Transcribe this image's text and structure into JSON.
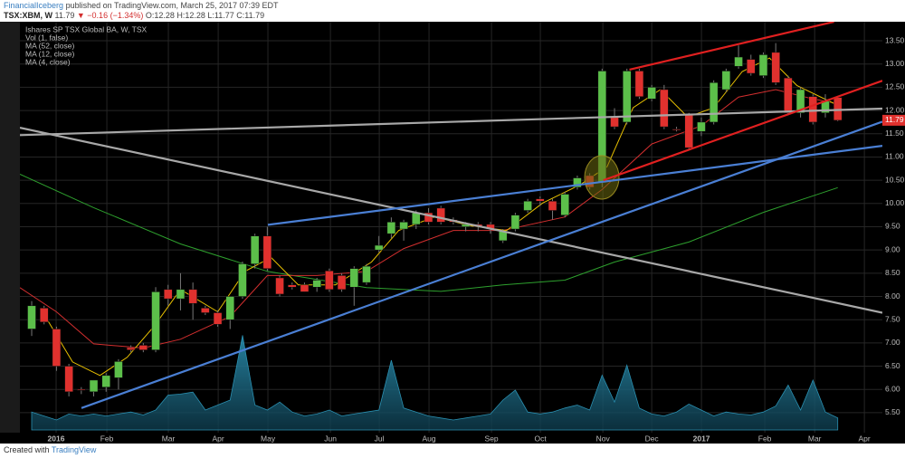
{
  "header": {
    "author": "FinancialIceberg",
    "published": "published on TradingView.com, March 25, 2017 07:39 EDT",
    "symbol": "TSX:XBM, W",
    "last": "11.79",
    "change": "▼ −0.16 (−1.34%)",
    "ohlc": "O:12.28 H:12.28 L:11.77 C:11.79"
  },
  "footer": {
    "text": "Created with",
    "brand": "TradingView"
  },
  "chart_data": {
    "type": "candlestick",
    "title": "Ishares SP TSX Global BA, W, TSX",
    "up_color": "#5cbf4a",
    "down_color": "#e0312e",
    "grid": true,
    "last_price": {
      "value": 11.79,
      "label": "11.79"
    },
    "xlim": [
      -0.95,
      68.6
    ],
    "xticks": [
      {
        "value": 1.97,
        "label": "2016"
      },
      {
        "value": 6.06,
        "label": "Feb"
      },
      {
        "value": 11.02,
        "label": "Mar"
      },
      {
        "value": 15.04,
        "label": "Apr"
      },
      {
        "value": 19.05,
        "label": "May"
      },
      {
        "value": 24.09,
        "label": "Jun"
      },
      {
        "value": 28.03,
        "label": "Jul"
      },
      {
        "value": 32.04,
        "label": "Aug"
      },
      {
        "value": 37.08,
        "label": "Sep"
      },
      {
        "value": 41.02,
        "label": "Oct"
      },
      {
        "value": 46.06,
        "label": "Nov"
      },
      {
        "value": 50.0,
        "label": "Dec"
      },
      {
        "value": 54.01,
        "label": "2017"
      },
      {
        "value": 59.12,
        "label": "Feb"
      },
      {
        "value": 63.14,
        "label": "Mar"
      },
      {
        "value": 67.15,
        "label": "Apr"
      }
    ],
    "ylim": [
      5.07,
      13.91
    ],
    "yticks": [
      {
        "value": 5.5,
        "label": "5.50"
      },
      {
        "value": 6,
        "label": "6.00"
      },
      {
        "value": 6.5,
        "label": "6.50"
      },
      {
        "value": 7,
        "label": "7.00"
      },
      {
        "value": 7.5,
        "label": "7.50"
      },
      {
        "value": 8,
        "label": "8.00"
      },
      {
        "value": 8.5,
        "label": "8.50"
      },
      {
        "value": 9,
        "label": "9.00"
      },
      {
        "value": 9.5,
        "label": "9.50"
      },
      {
        "value": 10,
        "label": "10.00"
      },
      {
        "value": 10.5,
        "label": "10.50"
      },
      {
        "value": 11,
        "label": "11.00"
      },
      {
        "value": 11.5,
        "label": "11.50"
      },
      {
        "value": 12,
        "label": "12.00"
      },
      {
        "value": 12.5,
        "label": "12.50"
      },
      {
        "value": 13,
        "label": "13.00"
      },
      {
        "value": 13.5,
        "label": "13.50"
      }
    ],
    "x": [
      0,
      1,
      2,
      3,
      4,
      5,
      6,
      7,
      8,
      9,
      10,
      11,
      12,
      13,
      14,
      15,
      16,
      17,
      18,
      19,
      20,
      21,
      22,
      23,
      24,
      25,
      26,
      27,
      28,
      29,
      30,
      31,
      32,
      33,
      34,
      35,
      36,
      37,
      38,
      39,
      40,
      41,
      42,
      43,
      44,
      45,
      46,
      47,
      48,
      49,
      50,
      51,
      52,
      53,
      54,
      55,
      56,
      57,
      58,
      59,
      60,
      61,
      62,
      63,
      64,
      65
    ],
    "open": [
      7.3,
      7.75,
      7.3,
      6.5,
      6.0,
      5.95,
      6.05,
      6.25,
      6.9,
      6.95,
      6.85,
      8.15,
      7.95,
      8.15,
      7.75,
      7.65,
      7.5,
      8.0,
      8.7,
      9.3,
      8.4,
      8.25,
      8.25,
      8.2,
      8.55,
      8.45,
      8.2,
      8.3,
      9.0,
      9.35,
      9.45,
      9.55,
      9.8,
      9.9,
      9.65,
      9.5,
      9.55,
      9.55,
      9.2,
      9.45,
      9.85,
      10.1,
      10.05,
      9.75,
      10.35,
      10.6,
      10.45,
      11.85,
      11.75,
      12.85,
      12.25,
      12.45,
      11.6,
      11.9,
      11.55,
      11.75,
      12.45,
      12.95,
      13.1,
      12.75,
      13.25,
      12.7,
      11.95,
      12.3,
      11.95,
      12.28
    ],
    "high": [
      7.9,
      7.8,
      7.35,
      6.55,
      6.05,
      6.2,
      6.35,
      6.65,
      6.95,
      7.0,
      8.2,
      8.25,
      8.5,
      8.3,
      7.8,
      7.7,
      8.0,
      8.75,
      9.35,
      9.5,
      8.45,
      8.3,
      8.3,
      8.4,
      8.6,
      8.5,
      8.65,
      8.7,
      9.3,
      9.7,
      9.65,
      9.85,
      9.9,
      9.95,
      9.7,
      9.6,
      9.6,
      9.6,
      9.45,
      9.8,
      10.1,
      10.15,
      10.1,
      10.25,
      10.6,
      10.65,
      12.9,
      12.05,
      12.9,
      12.9,
      12.55,
      12.55,
      11.65,
      11.95,
      11.85,
      12.65,
      12.9,
      13.4,
      13.2,
      13.25,
      13.45,
      12.75,
      12.5,
      12.35,
      12.35,
      12.28
    ],
    "low": [
      7.15,
      7.4,
      6.4,
      5.85,
      5.9,
      5.85,
      5.95,
      6.0,
      6.8,
      6.8,
      6.8,
      7.8,
      7.7,
      7.5,
      7.6,
      7.35,
      7.3,
      7.95,
      8.6,
      8.55,
      8.0,
      8.15,
      8.1,
      8.1,
      8.1,
      8.1,
      7.8,
      8.25,
      8.95,
      9.25,
      9.2,
      9.45,
      9.55,
      9.55,
      9.55,
      9.4,
      9.4,
      9.35,
      9.15,
      9.4,
      9.8,
      9.95,
      9.65,
      9.7,
      10.3,
      10.3,
      10.35,
      11.6,
      11.7,
      12.25,
      12.2,
      11.6,
      11.55,
      11.15,
      11.45,
      11.7,
      12.4,
      12.9,
      12.75,
      12.7,
      12.55,
      11.9,
      11.85,
      11.7,
      11.85,
      11.77
    ],
    "close": [
      7.8,
      7.45,
      6.5,
      5.95,
      5.98,
      6.2,
      6.3,
      6.6,
      6.85,
      6.85,
      8.1,
      7.95,
      8.15,
      7.85,
      7.65,
      7.4,
      8.0,
      8.7,
      9.3,
      8.6,
      8.05,
      8.2,
      8.1,
      8.35,
      8.15,
      8.15,
      8.6,
      8.65,
      9.1,
      9.6,
      9.6,
      9.8,
      9.6,
      9.6,
      9.6,
      9.55,
      9.5,
      9.45,
      9.4,
      9.75,
      10.05,
      10.05,
      9.85,
      10.2,
      10.55,
      10.35,
      12.85,
      11.65,
      12.85,
      12.3,
      12.5,
      11.65,
      11.58,
      11.2,
      11.75,
      12.6,
      12.85,
      13.15,
      12.8,
      13.2,
      12.6,
      11.95,
      12.45,
      11.75,
      12.2,
      11.79
    ],
    "volume": {
      "name": "Vol (1, false)",
      "color": "#2a8fb0",
      "values": [
        18,
        14,
        10,
        16,
        14,
        16,
        14,
        16,
        18,
        15,
        20,
        35,
        36,
        38,
        20,
        25,
        30,
        95,
        25,
        20,
        28,
        18,
        14,
        16,
        20,
        14,
        16,
        18,
        20,
        70,
        22,
        18,
        14,
        12,
        10,
        12,
        14,
        16,
        30,
        40,
        18,
        16,
        18,
        22,
        25,
        20,
        55,
        28,
        65,
        22,
        16,
        14,
        18,
        26,
        20,
        14,
        18,
        16,
        15,
        18,
        24,
        45,
        20,
        50,
        18,
        12
      ]
    },
    "series": [
      {
        "name": "MA (52, close)",
        "color": "#2ea02e",
        "x": [
          -0.95,
          5,
          12,
          19,
          27,
          33,
          38,
          43,
          47,
          53,
          59,
          65
        ],
        "values": [
          10.63,
          9.91,
          9.13,
          8.54,
          8.19,
          8.11,
          8.25,
          8.35,
          8.74,
          9.17,
          9.81,
          10.34
        ]
      },
      {
        "name": "MA (12, close)",
        "color": "#d32f2f",
        "x": [
          -0.95,
          2,
          5,
          9,
          12,
          16,
          19,
          23,
          27,
          30,
          34,
          38,
          43,
          46,
          50,
          54,
          57,
          60,
          63,
          65
        ],
        "values": [
          8.19,
          7.67,
          6.98,
          6.89,
          7.08,
          7.57,
          8.45,
          8.45,
          8.54,
          9.03,
          9.42,
          9.42,
          9.71,
          10.3,
          11.28,
          11.67,
          12.29,
          12.45,
          12.25,
          12.15
        ]
      },
      {
        "name": "MA (4, close)",
        "color": "#e8c000",
        "x": [
          1.1,
          3.3,
          5.5,
          7.7,
          9.9,
          12,
          15,
          17.2,
          19.3,
          21.5,
          24.5,
          27.4,
          29.6,
          32.5,
          35.4,
          38.3,
          41.2,
          44.2,
          46.4,
          48.5,
          50.7,
          52.9,
          55,
          57.3,
          59.5,
          61.7,
          65.1
        ],
        "values": [
          7.57,
          6.59,
          6.3,
          6.69,
          7.37,
          8.15,
          7.67,
          8.54,
          8.84,
          8.25,
          8.25,
          8.74,
          9.42,
          9.71,
          9.52,
          9.42,
          10.01,
          10.4,
          10.79,
          12.06,
          12.45,
          11.86,
          12.06,
          12.84,
          13.13,
          12.54,
          12.1
        ]
      }
    ],
    "trendlines": [
      {
        "color": "#a8a8a8",
        "x": [
          -0.95,
          68.6
        ],
        "values": [
          11.63,
          7.65
        ]
      },
      {
        "color": "#a8a8a8",
        "x": [
          -0.95,
          68.6
        ],
        "values": [
          11.47,
          12.04
        ]
      },
      {
        "color": "#4a7fd4",
        "x": [
          4.01,
          68.6
        ],
        "values": [
          5.6,
          11.76
        ]
      },
      {
        "color": "#4a7fd4",
        "x": [
          19.05,
          68.6
        ],
        "values": [
          9.54,
          11.24
        ]
      },
      {
        "color": "#e02020",
        "x": [
          48.2,
          64.7
        ],
        "values": [
          12.88,
          13.91
        ]
      },
      {
        "color": "#e02020",
        "x": [
          46.1,
          68.6
        ],
        "values": [
          10.5,
          12.64
        ]
      }
    ]
  }
}
